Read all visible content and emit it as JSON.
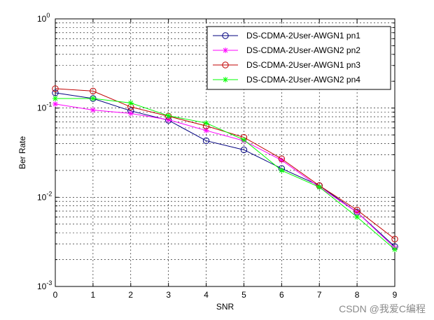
{
  "chart_data": {
    "type": "line",
    "title": "",
    "xlabel": "SNR",
    "ylabel": "Ber Rate",
    "xlim": [
      0,
      9
    ],
    "ylim": [
      0.001,
      1
    ],
    "yscale": "log",
    "grid": true,
    "legend_position": "top-right",
    "x": [
      0,
      1,
      2,
      3,
      4,
      5,
      6,
      7,
      8,
      9
    ],
    "x_tick_labels": [
      "0",
      "1",
      "2",
      "3",
      "4",
      "5",
      "6",
      "7",
      "8",
      "9"
    ],
    "y_tick_labels": [
      {
        "base": "10",
        "exp": "0",
        "value": 1
      },
      {
        "base": "10",
        "exp": "-1",
        "value": 0.1
      },
      {
        "base": "10",
        "exp": "-2",
        "value": 0.01
      },
      {
        "base": "10",
        "exp": "-3",
        "value": 0.001
      }
    ],
    "series": [
      {
        "name": "DS-CDMA-2User-AWGN1 pn1",
        "color": "#00007f",
        "marker": "circle",
        "values": [
          0.148,
          0.128,
          0.093,
          0.073,
          0.043,
          0.034,
          0.021,
          0.0135,
          0.0068,
          0.0028
        ]
      },
      {
        "name": "DS-CDMA-2User-AWGN2 pn2",
        "color": "#ff00ff",
        "marker": "star",
        "values": [
          0.111,
          0.095,
          0.087,
          0.074,
          0.056,
          0.043,
          0.026,
          0.013,
          0.0068,
          0.0027
        ]
      },
      {
        "name": "DS-CDMA-2User-AWGN1 pn3",
        "color": "#c00000",
        "marker": "circle",
        "values": [
          0.165,
          0.155,
          0.103,
          0.081,
          0.063,
          0.047,
          0.027,
          0.0135,
          0.0072,
          0.0034
        ]
      },
      {
        "name": "DS-CDMA-2User-AWGN2 pn4",
        "color": "#00ff00",
        "marker": "star",
        "values": [
          0.128,
          0.128,
          0.114,
          0.082,
          0.068,
          0.044,
          0.02,
          0.013,
          0.006,
          0.0026
        ]
      }
    ]
  },
  "watermark": "CSDN @我爱C编程"
}
